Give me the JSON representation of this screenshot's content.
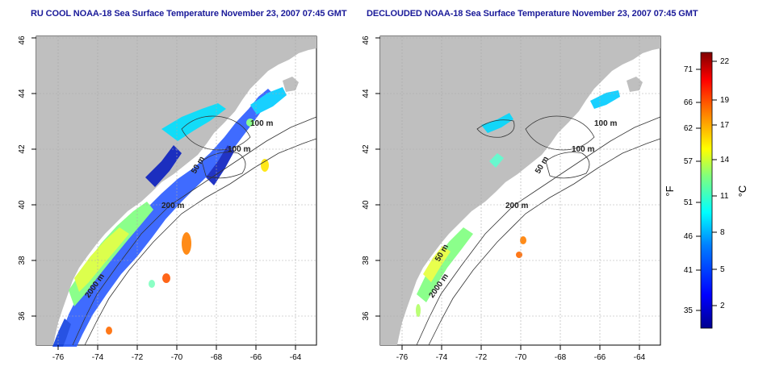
{
  "panels": [
    {
      "title": "RU COOL NOAA-18 Sea Surface Temperature November 23, 2007 07:45 GMT",
      "variant": "raw"
    },
    {
      "title": "DECLOUDED NOAA-18 Sea Surface Temperature November 23, 2007 07:45 GMT",
      "variant": "declouded"
    }
  ],
  "axes": {
    "x_ticks": [
      "-76",
      "-74",
      "-72",
      "-70",
      "-68",
      "-66",
      "-64"
    ],
    "y_ticks": [
      "36",
      "38",
      "40",
      "42",
      "44",
      "46"
    ]
  },
  "contours": {
    "left": [
      "100 m",
      "100 m",
      "50 m",
      "200 m",
      "2000 m"
    ],
    "right": [
      "100 m",
      "100 m",
      "50 m",
      "200 m",
      "50 m",
      "2000 m"
    ]
  },
  "colorbar": {
    "fahrenheit_unit": "°F",
    "celsius_unit": "°C",
    "fahrenheit_ticks": [
      "71",
      "66",
      "62",
      "57",
      "51",
      "46",
      "41",
      "35"
    ],
    "celsius_ticks": [
      "22",
      "19",
      "17",
      "14",
      "11",
      "8",
      "5",
      "2"
    ],
    "colors": [
      "#00008f",
      "#0000ff",
      "#007fff",
      "#00ffff",
      "#7fff7f",
      "#ffff00",
      "#ff7f00",
      "#ff0000",
      "#7f0000"
    ]
  },
  "colors": {
    "land": "#bfbfbf",
    "ocean": "#ffffff",
    "contour": "#333333",
    "grid": "#aaaaaa",
    "title": "#1a1a99"
  }
}
